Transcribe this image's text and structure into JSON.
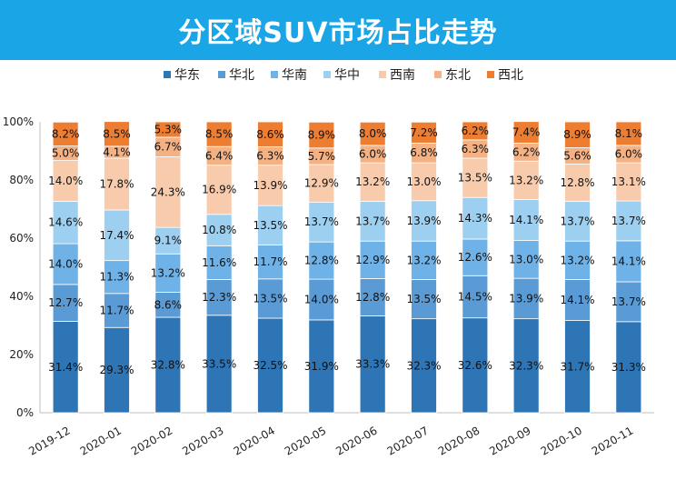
{
  "chart_data": {
    "type": "bar",
    "stacked": true,
    "title": "分区域SUV市场占比走势",
    "legend_position": "top",
    "grid": false,
    "ylim": [
      0,
      100
    ],
    "yticks": [
      "0%",
      "20%",
      "40%",
      "60%",
      "80%",
      "100%"
    ],
    "categories": [
      "2019-12",
      "2020-01",
      "2020-02",
      "2020-03",
      "2020-04",
      "2020-05",
      "2020-06",
      "2020-07",
      "2020-08",
      "2020-09",
      "2020-10",
      "2020-11"
    ],
    "series": [
      {
        "name": "华东",
        "color": "#2e75b6",
        "values": [
          31.4,
          29.3,
          32.8,
          33.5,
          32.5,
          31.9,
          33.3,
          32.3,
          32.6,
          32.3,
          31.7,
          31.3
        ]
      },
      {
        "name": "华北",
        "color": "#5b9bd5",
        "values": [
          12.7,
          11.7,
          8.6,
          12.3,
          13.5,
          14.0,
          12.8,
          13.5,
          14.5,
          13.9,
          14.1,
          13.7
        ]
      },
      {
        "name": "华南",
        "color": "#6fb2e8",
        "values": [
          14.0,
          11.3,
          13.2,
          11.6,
          11.7,
          12.8,
          12.9,
          13.2,
          12.6,
          13.0,
          13.2,
          14.1
        ]
      },
      {
        "name": "华中",
        "color": "#9dd0f0",
        "values": [
          14.6,
          17.4,
          9.1,
          10.8,
          13.5,
          13.7,
          13.7,
          13.9,
          14.3,
          14.1,
          13.7,
          13.7
        ]
      },
      {
        "name": "西南",
        "color": "#f8cbad",
        "values": [
          14.0,
          17.8,
          24.3,
          16.9,
          13.9,
          12.9,
          13.2,
          13.0,
          13.5,
          13.2,
          12.8,
          13.1
        ]
      },
      {
        "name": "东北",
        "color": "#f4b183",
        "values": [
          5.0,
          4.1,
          6.7,
          6.4,
          6.3,
          5.7,
          6.0,
          6.8,
          6.3,
          6.2,
          5.6,
          6.0
        ]
      },
      {
        "name": "西北",
        "color": "#ed7d31",
        "values": [
          8.2,
          8.5,
          5.3,
          8.5,
          8.6,
          8.9,
          8.0,
          7.2,
          6.2,
          7.4,
          8.9,
          8.1
        ]
      }
    ]
  }
}
